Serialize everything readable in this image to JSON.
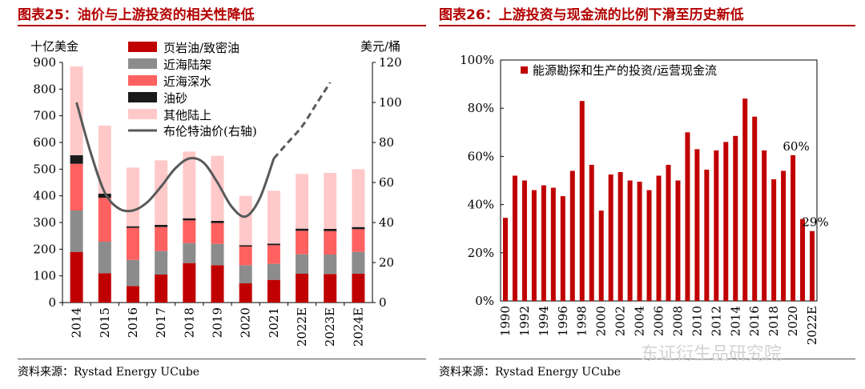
{
  "left": {
    "title": "图表25：油价与上游投资的相关性降低",
    "source": "资料来源：Rystad Energy UCube"
  },
  "right": {
    "title": "图表26：上游投资与现金流的比例下滑至历史新低",
    "source": "资料来源：Rystad Energy UCube"
  },
  "watermark": "东证衍生品研究院",
  "chart_data": [
    {
      "type": "bar",
      "stacked": true,
      "title": "油价与上游投资的相关性降低",
      "ylabel": "十亿美金",
      "y2label": "美元/桶",
      "ylim": [
        0,
        900
      ],
      "y2lim": [
        0,
        120
      ],
      "yticks": [
        "0",
        "100",
        "200",
        "300",
        "400",
        "500",
        "600",
        "700",
        "800",
        "900"
      ],
      "y2ticks": [
        "0",
        "20",
        "40",
        "60",
        "80",
        "100",
        "120"
      ],
      "categories": [
        "2014",
        "2015",
        "2016",
        "2017",
        "2018",
        "2019",
        "2020",
        "2021",
        "2022E",
        "2023E",
        "2024E"
      ],
      "series": [
        {
          "name": "页岩油/致密油",
          "color": "#c00000",
          "values": [
            190,
            110,
            62,
            105,
            148,
            140,
            72,
            85,
            108,
            107,
            108
          ]
        },
        {
          "name": "近海陆架",
          "color": "#8c8c8c",
          "values": [
            155,
            118,
            98,
            88,
            75,
            80,
            68,
            60,
            73,
            73,
            82
          ]
        },
        {
          "name": "近海深水",
          "color": "#ff6161",
          "values": [
            175,
            165,
            120,
            90,
            85,
            78,
            70,
            70,
            88,
            88,
            85
          ]
        },
        {
          "name": "油砂",
          "color": "#1a1a1a",
          "values": [
            32,
            15,
            6,
            8,
            8,
            8,
            5,
            6,
            8,
            8,
            8
          ]
        },
        {
          "name": "其他陆上",
          "color": "#ffc9c9",
          "values": [
            333,
            255,
            220,
            242,
            250,
            244,
            185,
            198,
            205,
            210,
            217
          ]
        }
      ],
      "line": {
        "name": "布伦特油价(右轴)",
        "color": "#595959",
        "x": [
          2014,
          2014.5,
          2015,
          2015.5,
          2016,
          2016.5,
          2017,
          2017.5,
          2018,
          2018.5,
          2019,
          2019.5,
          2020,
          2020.5,
          2021
        ],
        "values": [
          100,
          75,
          55,
          47,
          46,
          50,
          58,
          67,
          72,
          70,
          60,
          48,
          43,
          52,
          72
        ]
      },
      "forecast_line": {
        "x": [
          2021,
          2021.5,
          2022,
          2022.5,
          2023
        ],
        "values": [
          72,
          80,
          88,
          99,
          110
        ]
      }
    },
    {
      "type": "bar",
      "title": "上游投资与现金流的比例下滑至历史新低",
      "legend": "能源勘探和生产的投资/运营现金流",
      "color": "#c00000",
      "ylim": [
        0,
        100
      ],
      "yticks": [
        "0%",
        "20%",
        "40%",
        "60%",
        "80%",
        "100%"
      ],
      "categories": [
        "1990",
        "1991",
        "1992",
        "1993",
        "1994",
        "1995",
        "1996",
        "1997",
        "1998",
        "1999",
        "2000",
        "2001",
        "2002",
        "2003",
        "2004",
        "2005",
        "2006",
        "2007",
        "2008",
        "2009",
        "2010",
        "2011",
        "2012",
        "2013",
        "2014",
        "2015",
        "2016",
        "2017",
        "2018",
        "2019",
        "2020",
        "2021",
        "2022E"
      ],
      "xticklabels": [
        "1990",
        "1992",
        "1994",
        "1996",
        "1998",
        "2000",
        "2002",
        "2004",
        "2006",
        "2008",
        "2010",
        "2012",
        "2014",
        "2016",
        "2018",
        "2020",
        "2022E"
      ],
      "values": [
        34.5,
        52,
        50,
        46,
        48,
        47,
        43.5,
        54,
        83,
        56.5,
        37.5,
        52.5,
        53.5,
        50,
        49.5,
        46,
        52,
        56.5,
        50,
        70,
        63,
        54.5,
        62.5,
        66,
        68.5,
        84,
        76.5,
        62.5,
        50.5,
        54,
        60.5,
        34,
        29
      ],
      "annotations": [
        {
          "category": "2020",
          "text": "60%"
        },
        {
          "category": "2022E",
          "text": "29%"
        }
      ]
    }
  ]
}
